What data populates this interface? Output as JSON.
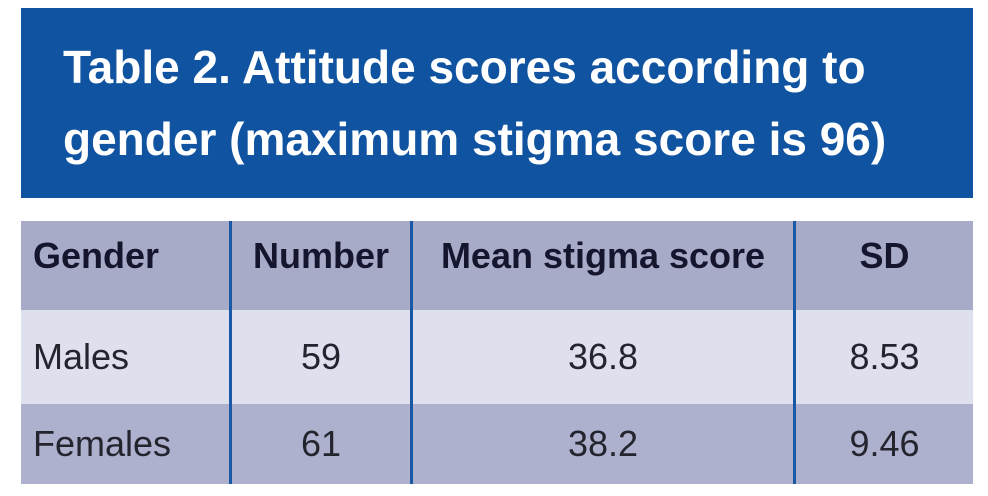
{
  "banner": {
    "title_line1": "Table 2. Attitude scores according to",
    "title_line2": "gender (maximum stigma score is 96)",
    "background": "#1053a0",
    "text_color": "#ffffff"
  },
  "table": {
    "columns": [
      {
        "label": "Gender"
      },
      {
        "label": "Number"
      },
      {
        "label": "Mean stigma score"
      },
      {
        "label": "SD"
      }
    ],
    "rows": [
      {
        "cells": [
          "Males",
          "59",
          "36.8",
          "8.53"
        ]
      },
      {
        "cells": [
          "Females",
          "61",
          "38.2",
          "9.46"
        ]
      }
    ],
    "colors": {
      "header_bg": "#a8abc8",
      "row_males_bg": "#dfe0ee",
      "row_females_bg": "#aeb1cd",
      "divider_line": "#1a57a4",
      "header_text": "#15152e",
      "body_text": "#24242e"
    }
  },
  "chart_data": {
    "type": "table",
    "title": "Table 2. Attitude scores according to gender (maximum stigma score is 96)",
    "columns": [
      "Gender",
      "Number",
      "Mean stigma score",
      "SD"
    ],
    "rows": [
      [
        "Males",
        59,
        36.8,
        8.53
      ],
      [
        "Females",
        61,
        38.2,
        9.46
      ]
    ],
    "notes": "Maximum possible stigma score is 96"
  }
}
